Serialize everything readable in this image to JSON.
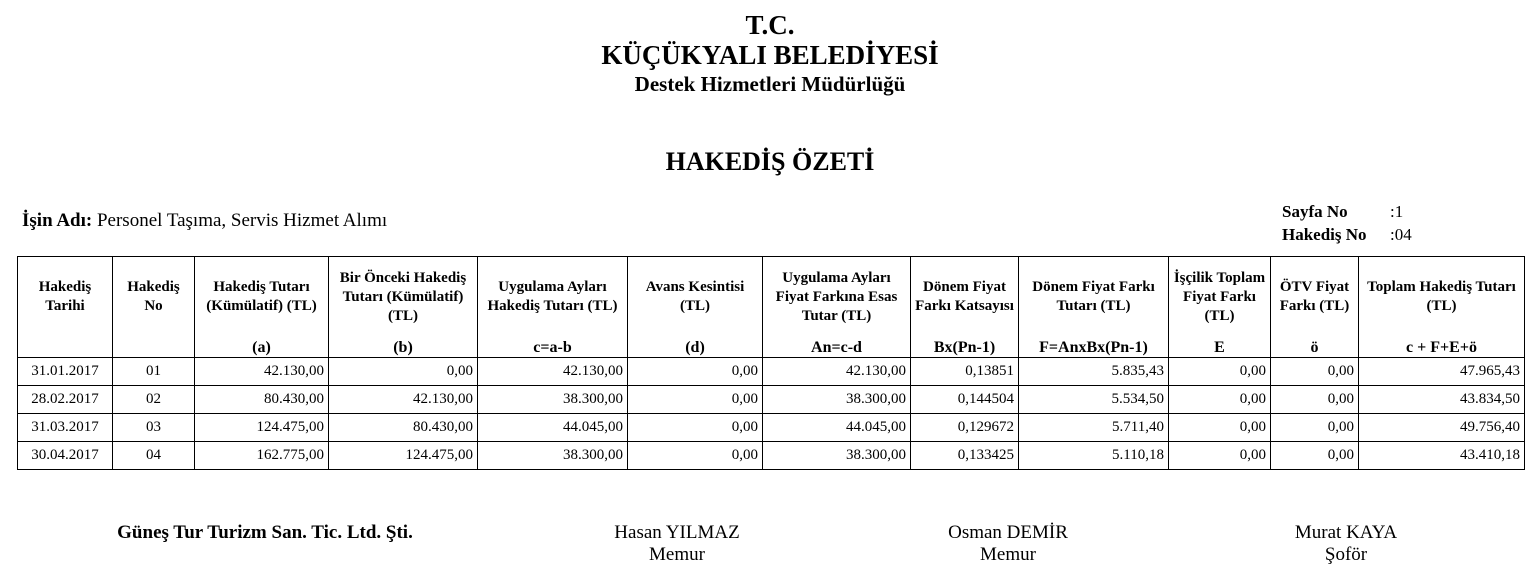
{
  "header": {
    "line1": "T.C.",
    "line2": "KÜÇÜKYALI BELEDİYESİ",
    "line3": "Destek Hizmetleri Müdürlüğü",
    "title": "HAKEDİŞ ÖZETİ"
  },
  "job": {
    "label": "İşin Adı:",
    "value": "Personel Taşıma, Servis Hizmet Alımı"
  },
  "meta": {
    "page_label": "Sayfa No",
    "page_value": ":1",
    "hakedis_label": "Hakediş No",
    "hakedis_value": ":04"
  },
  "table": {
    "headers": [
      "Hakediş Tarihi",
      "Hakediş No",
      "Hakediş Tutarı (Kümülatif) (TL)",
      "Bir Önceki Hakediş Tutarı (Kümülatif) (TL)",
      "Uygulama Ayları Hakediş Tutarı (TL)",
      "Avans Kesintisi (TL)",
      "Uygulama Ayları Fiyat Farkına Esas Tutar (TL)",
      "Dönem Fiyat Farkı Katsayısı",
      "Dönem Fiyat Farkı Tutarı (TL)",
      "İşçilik Toplam Fiyat Farkı (TL)",
      "ÖTV Fiyat Farkı (TL)",
      "Toplam Hakediş Tutarı (TL)"
    ],
    "formulas": [
      "",
      "",
      "(a)",
      "(b)",
      "c=a-b",
      "(d)",
      "An=c-d",
      "Bx(Pn-1)",
      "F=AnxBx(Pn-1)",
      "E",
      "ö",
      "c + F+E+ö"
    ],
    "rows": [
      [
        "31.01.2017",
        "01",
        "42.130,00",
        "0,00",
        "42.130,00",
        "0,00",
        "42.130,00",
        "0,13851",
        "5.835,43",
        "0,00",
        "0,00",
        "47.965,43"
      ],
      [
        "28.02.2017",
        "02",
        "80.430,00",
        "42.130,00",
        "38.300,00",
        "0,00",
        "38.300,00",
        "0,144504",
        "5.534,50",
        "0,00",
        "0,00",
        "43.834,50"
      ],
      [
        "31.03.2017",
        "03",
        "124.475,00",
        "80.430,00",
        "44.045,00",
        "0,00",
        "44.045,00",
        "0,129672",
        "5.711,40",
        "0,00",
        "0,00",
        "49.756,40"
      ],
      [
        "30.04.2017",
        "04",
        "162.775,00",
        "124.475,00",
        "38.300,00",
        "0,00",
        "38.300,00",
        "0,133425",
        "5.110,18",
        "0,00",
        "0,00",
        "43.410,18"
      ]
    ]
  },
  "signatures": [
    {
      "name": "Güneş Tur Turizm San. Tic. Ltd. Şti.",
      "role": ""
    },
    {
      "name": "Hasan YILMAZ",
      "role": "Memur"
    },
    {
      "name": "Osman DEMİR",
      "role": "Memur"
    },
    {
      "name": "Murat KAYA",
      "role": "Şoför"
    }
  ]
}
